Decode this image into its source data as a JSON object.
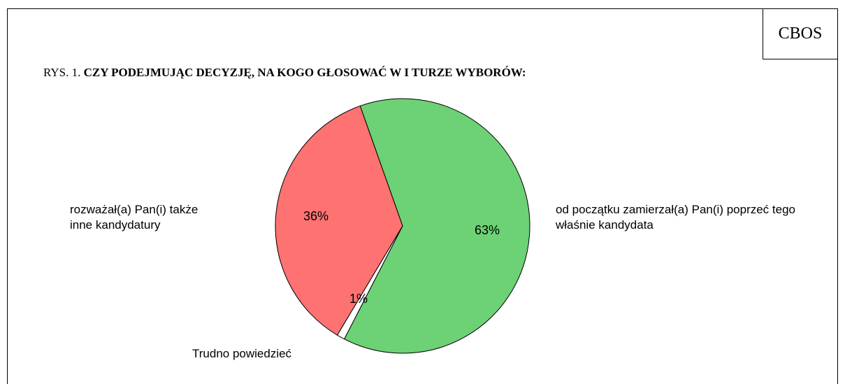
{
  "chart_data": {
    "type": "pie",
    "source": "CBOS",
    "figure_label": "RYS. 1.",
    "title": "CZY PODEJMUJĄC DECYZJĘ, NA KOGO GŁOSOWAĆ W I TURZE WYBORÓW:",
    "categories": [
      "od początku zamierzał(a) Pan(i) poprzeć tego właśnie kandydata",
      "Trudno powiedzieć",
      "rozważał(a) Pan(i) także inne kandydatury"
    ],
    "values": [
      63,
      1,
      36
    ],
    "value_labels": [
      "63%",
      "1%",
      "36%"
    ],
    "colors": [
      "#6dd175",
      "#ffffff",
      "#ff7272"
    ]
  }
}
